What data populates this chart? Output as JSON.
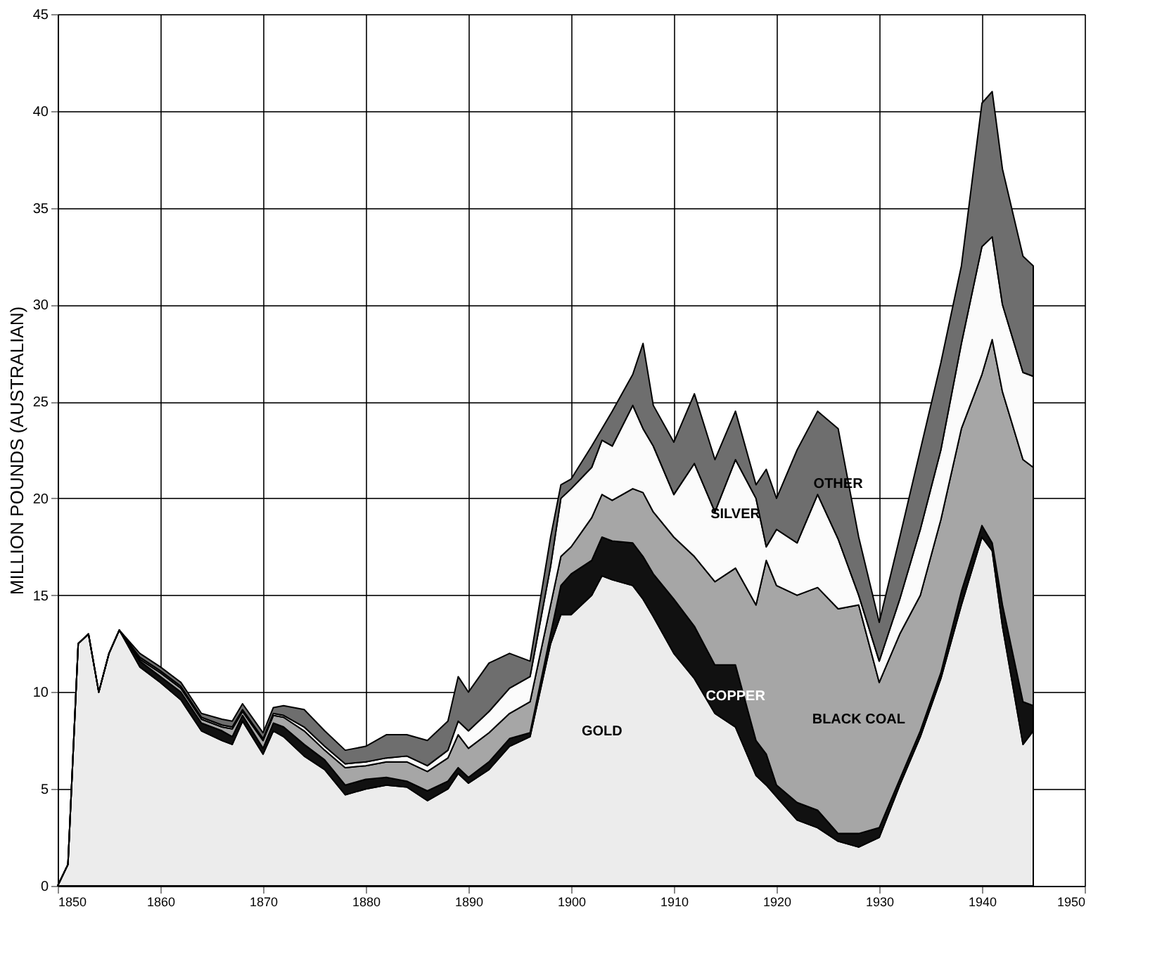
{
  "chart_data": {
    "type": "area",
    "stacked": true,
    "ylabel": "MILLION POUNDS (AUSTRALIAN)",
    "xlim": [
      1850,
      1950
    ],
    "xticks": [
      1850,
      1860,
      1870,
      1880,
      1890,
      1900,
      1910,
      1920,
      1930,
      1940,
      1950
    ],
    "ylim": [
      0,
      45
    ],
    "yticks": [
      0,
      5,
      10,
      15,
      20,
      25,
      30,
      35,
      40,
      45
    ],
    "grid": true,
    "legend": false,
    "x": [
      1850,
      1851,
      1852,
      1853,
      1854,
      1855,
      1856,
      1858,
      1860,
      1862,
      1864,
      1866,
      1867,
      1868,
      1870,
      1871,
      1872,
      1874,
      1876,
      1878,
      1880,
      1882,
      1884,
      1886,
      1888,
      1889,
      1890,
      1892,
      1894,
      1896,
      1898,
      1899,
      1900,
      1902,
      1903,
      1904,
      1906,
      1907,
      1908,
      1910,
      1912,
      1914,
      1916,
      1918,
      1919,
      1920,
      1922,
      1924,
      1926,
      1928,
      1930,
      1932,
      1934,
      1936,
      1938,
      1940,
      1941,
      1942,
      1944,
      1945
    ],
    "series": [
      {
        "name": "GOLD",
        "color": "#ececec",
        "values": [
          0,
          1.1,
          12.5,
          13,
          10,
          12,
          13.2,
          11.3,
          10.5,
          9.6,
          8.0,
          7.5,
          7.3,
          8.5,
          6.8,
          8.0,
          7.7,
          6.7,
          6.0,
          4.7,
          5.0,
          5.2,
          5.1,
          4.4,
          5.0,
          5.8,
          5.3,
          6.0,
          7.2,
          7.7,
          12.5,
          14.0,
          14.0,
          15.0,
          16.0,
          15.8,
          15.5,
          14.8,
          13.9,
          12.0,
          10.7,
          8.9,
          8.2,
          5.7,
          5.2,
          4.6,
          3.4,
          3.0,
          2.3,
          2.0,
          2.5,
          5.2,
          7.7,
          10.7,
          14.5,
          18.0,
          17.3,
          13.4,
          7.3,
          8.0
        ]
      },
      {
        "name": "COPPER",
        "color": "#111111",
        "values": [
          0,
          0,
          0,
          0,
          0,
          0,
          0,
          0.3,
          0.3,
          0.4,
          0.4,
          0.5,
          0.4,
          0.3,
          0.3,
          0.4,
          0.5,
          0.6,
          0.5,
          0.5,
          0.5,
          0.4,
          0.3,
          0.5,
          0.4,
          0.3,
          0.3,
          0.4,
          0.4,
          0.2,
          0.5,
          1.5,
          2.1,
          1.8,
          2.0,
          2.0,
          2.2,
          2.2,
          2.2,
          2.8,
          2.7,
          2.5,
          3.2,
          1.8,
          1.6,
          0.6,
          0.9,
          0.9,
          0.4,
          0.7,
          0.5,
          0.3,
          0.3,
          0.3,
          0.7,
          0.6,
          0.4,
          1.1,
          2.2,
          1.3
        ]
      },
      {
        "name": "BLACK COAL",
        "color": "#a6a6a6",
        "values": [
          0,
          0,
          0,
          0,
          0,
          0,
          0,
          0.1,
          0.2,
          0.2,
          0.2,
          0.2,
          0.4,
          0.2,
          0.4,
          0.4,
          0.5,
          0.7,
          0.5,
          0.9,
          0.7,
          0.8,
          1.0,
          1.0,
          1.2,
          1.7,
          1.5,
          1.5,
          1.3,
          1.6,
          1.5,
          1.5,
          1.4,
          2.2,
          2.2,
          2.1,
          2.8,
          3.3,
          3.2,
          3.2,
          3.6,
          4.3,
          5.0,
          7.0,
          10.0,
          10.3,
          10.7,
          11.5,
          11.6,
          11.8,
          7.5,
          7.5,
          7.0,
          7.9,
          8.4,
          7.8,
          10.5,
          11.0,
          12.5,
          12.3
        ]
      },
      {
        "name": "SILVER",
        "color": "#fbfbfb",
        "values": [
          0,
          0,
          0,
          0,
          0,
          0,
          0,
          0.1,
          0.1,
          0.1,
          0.1,
          0.1,
          0.1,
          0.1,
          0.1,
          0.1,
          0.1,
          0.2,
          0.2,
          0.2,
          0.2,
          0.2,
          0.3,
          0.3,
          0.4,
          0.7,
          0.9,
          1.1,
          1.3,
          1.3,
          2.0,
          3.0,
          3.0,
          2.6,
          2.8,
          2.8,
          4.3,
          3.3,
          3.4,
          2.2,
          4.8,
          3.6,
          5.6,
          5.5,
          0.7,
          2.9,
          2.7,
          4.8,
          3.6,
          0.5,
          1.1,
          1.8,
          3.4,
          3.6,
          4.4,
          6.6,
          5.3,
          4.5,
          4.5,
          4.7
        ]
      },
      {
        "name": "OTHER",
        "color": "#6e6e6e",
        "values": [
          0,
          0,
          0,
          0,
          0,
          0,
          0,
          0.2,
          0.2,
          0.2,
          0.2,
          0.3,
          0.3,
          0.3,
          0.3,
          0.3,
          0.5,
          0.9,
          0.8,
          0.7,
          0.8,
          1.2,
          1.1,
          1.3,
          1.5,
          2.3,
          2.0,
          2.5,
          1.8,
          0.8,
          1.5,
          0.7,
          0.5,
          1.1,
          0.6,
          1.8,
          1.6,
          4.4,
          2.1,
          2.7,
          3.6,
          2.7,
          2.5,
          0.7,
          4.0,
          1.6,
          4.8,
          4.3,
          5.7,
          3.0,
          2.0,
          3.2,
          4.1,
          4.5,
          4.0,
          7.4,
          7.5,
          7.0,
          6.0,
          5.7
        ]
      }
    ]
  }
}
